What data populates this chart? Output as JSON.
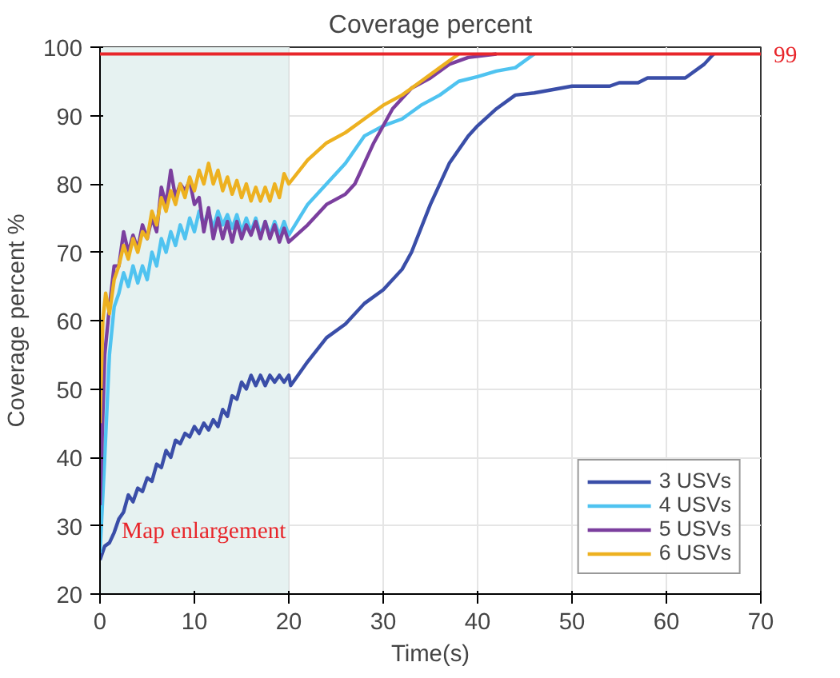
{
  "chart_data": {
    "type": "line",
    "title": "Coverage percent",
    "xlabel": "Time(s)",
    "ylabel": "Coverage percent %",
    "xlim": [
      0,
      70
    ],
    "ylim": [
      20,
      100
    ],
    "xticks": [
      0,
      10,
      20,
      30,
      40,
      50,
      60,
      70
    ],
    "yticks": [
      20,
      30,
      40,
      50,
      60,
      70,
      80,
      90,
      100
    ],
    "grid": true,
    "legend": "bottom right",
    "ref_lines": [
      {
        "axis": "y",
        "value": 99,
        "label": "99",
        "color": "#e8262b"
      }
    ],
    "bands": [
      {
        "axis": "x",
        "from": 0,
        "to": 20,
        "label": "Map enlargement",
        "color": "#e6f2f1"
      }
    ],
    "series": [
      {
        "name": "3 USVs",
        "color": "#3a4ea8",
        "x": [
          0,
          0.5,
          1,
          1.5,
          2,
          2.5,
          3,
          3.5,
          4,
          4.5,
          5,
          5.5,
          6,
          6.5,
          7,
          7.5,
          8,
          8.5,
          9,
          9.5,
          10,
          10.5,
          11,
          11.5,
          12,
          12.5,
          13,
          13.5,
          14,
          14.5,
          15,
          15.5,
          16,
          16.5,
          17,
          17.5,
          18,
          18.5,
          19,
          19.5,
          20,
          20.2,
          22,
          24,
          26,
          28,
          30,
          32,
          33,
          35,
          37,
          39,
          40,
          42,
          44,
          46,
          48,
          50,
          54,
          55,
          57,
          58,
          62,
          64,
          65
        ],
        "values": [
          25,
          27,
          27.5,
          29,
          31,
          32,
          34.5,
          33.5,
          35.5,
          35,
          37,
          36.5,
          39,
          38.5,
          41,
          40,
          42.5,
          42,
          43.5,
          43,
          44.5,
          43.5,
          45,
          44,
          45.5,
          44.5,
          47,
          46,
          49,
          48.5,
          51,
          50,
          52,
          50.5,
          52,
          50.5,
          52,
          51,
          52,
          51,
          52,
          50.5,
          54,
          57.5,
          59.5,
          62.5,
          64.5,
          67.5,
          70,
          77,
          83,
          87,
          88.5,
          91,
          93,
          93.3,
          93.8,
          94.3,
          94.3,
          94.8,
          94.8,
          95.5,
          95.5,
          97.5,
          99
        ]
      },
      {
        "name": "4 USVs",
        "color": "#4fc3f0",
        "x": [
          0,
          0.5,
          1,
          1.5,
          2,
          2.5,
          3,
          3.5,
          4,
          4.5,
          5,
          5.5,
          6,
          6.5,
          7,
          7.5,
          8,
          8.5,
          9,
          9.5,
          10,
          10.5,
          11,
          11.5,
          12,
          12.5,
          13,
          13.5,
          14,
          14.5,
          15,
          15.5,
          16,
          16.5,
          17,
          17.5,
          18,
          18.5,
          19,
          19.5,
          20,
          22,
          24,
          26,
          28,
          30,
          32,
          34,
          36,
          38,
          40,
          42,
          44,
          46
        ],
        "values": [
          26,
          40,
          55,
          62,
          64,
          67,
          65,
          68,
          65.5,
          68,
          66,
          70,
          68,
          72,
          70,
          73,
          71,
          74,
          72,
          75,
          73,
          76,
          74,
          76,
          73.5,
          76,
          74,
          75.5,
          73.5,
          75.5,
          73,
          75,
          73,
          75,
          72.5,
          74.5,
          72.5,
          74.5,
          72.5,
          74.5,
          72.5,
          77,
          80,
          83,
          87,
          88.5,
          89.5,
          91.5,
          93,
          95,
          95.7,
          96.5,
          97,
          99
        ]
      },
      {
        "name": "5 USVs",
        "color": "#7b3f9e",
        "x": [
          0,
          0.5,
          1,
          1.5,
          2,
          2.5,
          3,
          3.5,
          4,
          4.5,
          5,
          5.5,
          6,
          6.5,
          7,
          7.5,
          8,
          8.5,
          9,
          9.5,
          10,
          10.5,
          11,
          11.5,
          12,
          12.5,
          13,
          13.5,
          14,
          14.5,
          15,
          15.5,
          16,
          16.5,
          17,
          17.5,
          18,
          18.5,
          19,
          19.5,
          20,
          22,
          24,
          26,
          27,
          29,
          31,
          33,
          35,
          37,
          39,
          42
        ],
        "values": [
          33,
          55,
          62,
          68,
          68,
          73,
          70,
          72.5,
          70.5,
          74,
          72,
          75,
          73,
          79.5,
          77,
          82,
          78,
          80,
          79,
          80.5,
          77,
          78,
          73,
          76.5,
          72,
          75,
          72,
          74.5,
          71.5,
          74.5,
          72,
          74,
          72.5,
          74.5,
          72,
          74.5,
          72,
          74,
          71.5,
          73.5,
          71.5,
          74,
          77,
          78.5,
          80,
          86,
          91,
          94,
          95.5,
          97.5,
          98.5,
          99
        ]
      },
      {
        "name": "6 USVs",
        "color": "#edb120",
        "x": [
          0,
          0.3,
          0.6,
          1,
          1.5,
          2,
          2.5,
          3,
          3.5,
          4,
          4.5,
          5,
          5.5,
          6,
          6.5,
          7,
          7.5,
          8,
          8.5,
          9,
          9.5,
          10,
          10.5,
          11,
          11.5,
          12,
          12.5,
          13,
          13.5,
          14,
          14.5,
          15,
          15.5,
          16,
          16.5,
          17,
          17.5,
          18,
          18.5,
          19,
          19.5,
          20,
          22,
          24,
          26,
          28,
          30,
          32,
          34,
          36,
          38
        ],
        "values": [
          45,
          60,
          64,
          61,
          66,
          68,
          71,
          69,
          72,
          70,
          73,
          72,
          76,
          74,
          78,
          76,
          79,
          77,
          80,
          78,
          81,
          79,
          82,
          80,
          83,
          80,
          82,
          79,
          81,
          78.5,
          80.5,
          78,
          80,
          77.5,
          79.5,
          77.5,
          79.5,
          77.5,
          80,
          78,
          81.5,
          80,
          83.5,
          86,
          87.5,
          89.5,
          91.5,
          93,
          95,
          97,
          99
        ]
      }
    ]
  }
}
